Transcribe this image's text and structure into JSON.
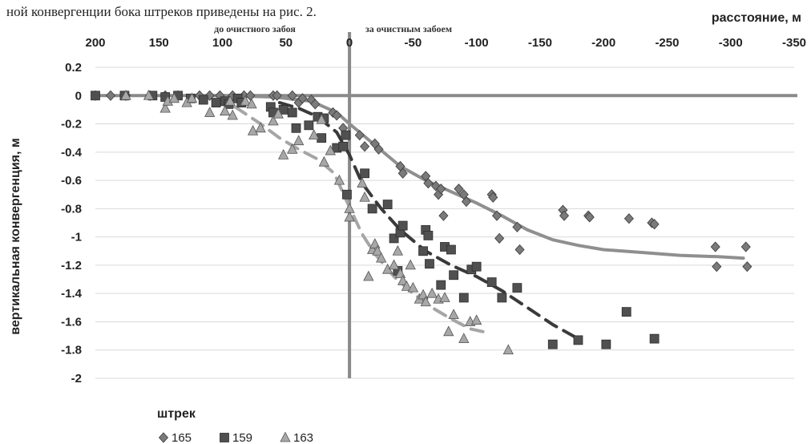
{
  "header_text": "ной конвергенции бока штреков приведены на рис. 2.",
  "colors": {
    "s165": "#7a7a7a",
    "s159": "#505050",
    "s163": "#a8a8a8",
    "trend165": "#8f8f8f",
    "trend159": "#3a3a3a",
    "trend163": "#a6a6a6",
    "axis": "#8a8a8a",
    "grid": "#d9d9d9"
  },
  "chart_data": {
    "type": "scatter",
    "x_title": "расстояние, м",
    "y_title": "вертикальная конвергенция, м",
    "zone_before": "до очистного забоя",
    "zone_after": "за очистным забоем",
    "x_axis_reversed": true,
    "x_range": [
      200,
      -350
    ],
    "y_range": [
      -2,
      0.2
    ],
    "x_ticks": [
      "200",
      "150",
      "100",
      "50",
      "0",
      "-50",
      "-100",
      "-150",
      "-200",
      "-250",
      "-300",
      "-350"
    ],
    "y_ticks": [
      "0.2",
      "0",
      "-0.2",
      "-0.4",
      "-0.6",
      "-0.8",
      "-1",
      "-1.2",
      "-1.4",
      "-1.6",
      "-1.8",
      "-2"
    ],
    "grid": "horizontal",
    "legend": {
      "title": "штрек",
      "position": "bottom-left"
    },
    "series": [
      {
        "name": "165",
        "marker": "diamond",
        "points": [
          [
            200,
            0
          ],
          [
            188,
            0
          ],
          [
            176,
            0
          ],
          [
            157,
            0
          ],
          [
            145,
            0
          ],
          [
            135,
            0
          ],
          [
            118,
            0
          ],
          [
            110,
            0
          ],
          [
            102,
            0
          ],
          [
            92,
            0
          ],
          [
            83,
            0
          ],
          [
            78,
            0
          ],
          [
            60,
            0
          ],
          [
            57,
            0
          ],
          [
            45,
            0
          ],
          [
            40,
            -0.05
          ],
          [
            37,
            -0.02
          ],
          [
            30,
            -0.03
          ],
          [
            27,
            -0.06
          ],
          [
            13,
            -0.12
          ],
          [
            10,
            -0.14
          ],
          [
            5,
            -0.23
          ],
          [
            -8,
            -0.28
          ],
          [
            -12,
            -0.36
          ],
          [
            -20,
            -0.34
          ],
          [
            -23,
            -0.38
          ],
          [
            -40,
            -0.5
          ],
          [
            -42,
            -0.55
          ],
          [
            -60,
            -0.57
          ],
          [
            -62,
            -0.62
          ],
          [
            -68,
            -0.64
          ],
          [
            -70,
            -0.7
          ],
          [
            -72,
            -0.66
          ],
          [
            -74,
            -0.85
          ],
          [
            -86,
            -0.66
          ],
          [
            -90,
            -0.7
          ],
          [
            -92,
            -0.75
          ],
          [
            -112,
            -0.7
          ],
          [
            -113,
            -0.72
          ],
          [
            -116,
            -0.85
          ],
          [
            -118,
            -1.01
          ],
          [
            -132,
            -0.93
          ],
          [
            -134,
            -1.09
          ],
          [
            -168,
            -0.81
          ],
          [
            -169,
            -0.85
          ],
          [
            -188,
            -0.85
          ],
          [
            -189,
            -0.86
          ],
          [
            -220,
            -0.87
          ],
          [
            -238,
            -0.9
          ],
          [
            -240,
            -0.91
          ],
          [
            -288,
            -1.07
          ],
          [
            -289,
            -1.21
          ],
          [
            -312,
            -1.07
          ],
          [
            -313,
            -1.21
          ]
        ]
      },
      {
        "name": "159",
        "marker": "square",
        "points": [
          [
            200,
            0
          ],
          [
            177,
            0
          ],
          [
            155,
            0
          ],
          [
            145,
            -0.01
          ],
          [
            135,
            0
          ],
          [
            125,
            -0.02
          ],
          [
            115,
            -0.03
          ],
          [
            105,
            -0.05
          ],
          [
            98,
            -0.04
          ],
          [
            95,
            -0.06
          ],
          [
            88,
            -0.02
          ],
          [
            85,
            -0.05
          ],
          [
            62,
            -0.08
          ],
          [
            60,
            -0.12
          ],
          [
            52,
            -0.1
          ],
          [
            45,
            -0.12
          ],
          [
            42,
            -0.23
          ],
          [
            32,
            -0.21
          ],
          [
            25,
            -0.15
          ],
          [
            22,
            -0.3
          ],
          [
            20,
            -0.16
          ],
          [
            10,
            -0.37
          ],
          [
            5,
            -0.36
          ],
          [
            3,
            -0.28
          ],
          [
            2,
            -0.7
          ],
          [
            -12,
            -0.55
          ],
          [
            -18,
            -0.8
          ],
          [
            -30,
            -0.77
          ],
          [
            -35,
            -1.01
          ],
          [
            -38,
            -1.24
          ],
          [
            -40,
            -0.97
          ],
          [
            -42,
            -0.92
          ],
          [
            -58,
            -1.1
          ],
          [
            -60,
            -0.95
          ],
          [
            -62,
            -0.99
          ],
          [
            -63,
            -1.19
          ],
          [
            -72,
            -1.34
          ],
          [
            -75,
            -1.07
          ],
          [
            -80,
            -1.09
          ],
          [
            -82,
            -1.27
          ],
          [
            -90,
            -1.43
          ],
          [
            -96,
            -1.23
          ],
          [
            -100,
            -1.21
          ],
          [
            -112,
            -1.32
          ],
          [
            -120,
            -1.43
          ],
          [
            -132,
            -1.36
          ],
          [
            -160,
            -1.76
          ],
          [
            -180,
            -1.73
          ],
          [
            -202,
            -1.76
          ],
          [
            -218,
            -1.53
          ],
          [
            -240,
            -1.72
          ]
        ]
      },
      {
        "name": "163",
        "marker": "triangle",
        "points": [
          [
            176,
            0
          ],
          [
            158,
            0
          ],
          [
            145,
            -0.09
          ],
          [
            143,
            -0.04
          ],
          [
            138,
            -0.02
          ],
          [
            128,
            -0.05
          ],
          [
            124,
            -0.02
          ],
          [
            110,
            -0.12
          ],
          [
            98,
            -0.11
          ],
          [
            94,
            -0.04
          ],
          [
            92,
            -0.14
          ],
          [
            82,
            -0.04
          ],
          [
            77,
            -0.06
          ],
          [
            76,
            -0.25
          ],
          [
            70,
            -0.23
          ],
          [
            60,
            -0.18
          ],
          [
            56,
            -0.13
          ],
          [
            52,
            -0.42
          ],
          [
            45,
            -0.38
          ],
          [
            40,
            -0.32
          ],
          [
            28,
            -0.28
          ],
          [
            22,
            -0.17
          ],
          [
            20,
            -0.47
          ],
          [
            15,
            -0.39
          ],
          [
            8,
            -0.6
          ],
          [
            0,
            -0.8
          ],
          [
            0,
            -0.86
          ],
          [
            -10,
            -0.62
          ],
          [
            -12,
            -0.72
          ],
          [
            -15,
            -1.28
          ],
          [
            -18,
            -1.09
          ],
          [
            -20,
            -1.05
          ],
          [
            -22,
            -1.1
          ],
          [
            -25,
            -1.15
          ],
          [
            -30,
            -1.23
          ],
          [
            -35,
            -1.2
          ],
          [
            -38,
            -1.1
          ],
          [
            -40,
            -1.26
          ],
          [
            -42,
            -1.31
          ],
          [
            -45,
            -1.35
          ],
          [
            -48,
            -1.2
          ],
          [
            -50,
            -1.36
          ],
          [
            -55,
            -1.44
          ],
          [
            -58,
            -1.41
          ],
          [
            -60,
            -1.46
          ],
          [
            -65,
            -1.4
          ],
          [
            -70,
            -1.44
          ],
          [
            -75,
            -1.43
          ],
          [
            -78,
            -1.67
          ],
          [
            -82,
            -1.55
          ],
          [
            -90,
            -1.72
          ],
          [
            -95,
            -1.6
          ],
          [
            -100,
            -1.59
          ],
          [
            -125,
            -1.8
          ]
        ]
      }
    ],
    "trendlines": [
      {
        "series": "165",
        "style": "solid",
        "points": [
          [
            100,
            0
          ],
          [
            60,
            -0.01
          ],
          [
            30,
            -0.04
          ],
          [
            10,
            -0.12
          ],
          [
            0,
            -0.2
          ],
          [
            -20,
            -0.35
          ],
          [
            -40,
            -0.5
          ],
          [
            -60,
            -0.6
          ],
          [
            -80,
            -0.68
          ],
          [
            -100,
            -0.76
          ],
          [
            -120,
            -0.85
          ],
          [
            -140,
            -0.95
          ],
          [
            -160,
            -1.02
          ],
          [
            -180,
            -1.06
          ],
          [
            -200,
            -1.09
          ],
          [
            -230,
            -1.11
          ],
          [
            -260,
            -1.13
          ],
          [
            -290,
            -1.14
          ],
          [
            -310,
            -1.15
          ]
        ]
      },
      {
        "series": "159",
        "style": "dashed",
        "points": [
          [
            55,
            -0.05
          ],
          [
            40,
            -0.09
          ],
          [
            25,
            -0.15
          ],
          [
            10,
            -0.26
          ],
          [
            0,
            -0.42
          ],
          [
            -10,
            -0.62
          ],
          [
            -25,
            -0.8
          ],
          [
            -40,
            -0.95
          ],
          [
            -60,
            -1.1
          ],
          [
            -80,
            -1.2
          ],
          [
            -100,
            -1.28
          ],
          [
            -120,
            -1.38
          ],
          [
            -140,
            -1.5
          ],
          [
            -160,
            -1.62
          ],
          [
            -180,
            -1.72
          ]
        ]
      },
      {
        "series": "163",
        "style": "dashed",
        "points": [
          [
            90,
            -0.08
          ],
          [
            70,
            -0.2
          ],
          [
            55,
            -0.3
          ],
          [
            40,
            -0.38
          ],
          [
            25,
            -0.45
          ],
          [
            12,
            -0.55
          ],
          [
            2,
            -0.75
          ],
          [
            -10,
            -0.98
          ],
          [
            -20,
            -1.12
          ],
          [
            -35,
            -1.28
          ],
          [
            -50,
            -1.4
          ],
          [
            -65,
            -1.5
          ],
          [
            -80,
            -1.58
          ],
          [
            -95,
            -1.65
          ],
          [
            -105,
            -1.67
          ]
        ]
      }
    ]
  }
}
